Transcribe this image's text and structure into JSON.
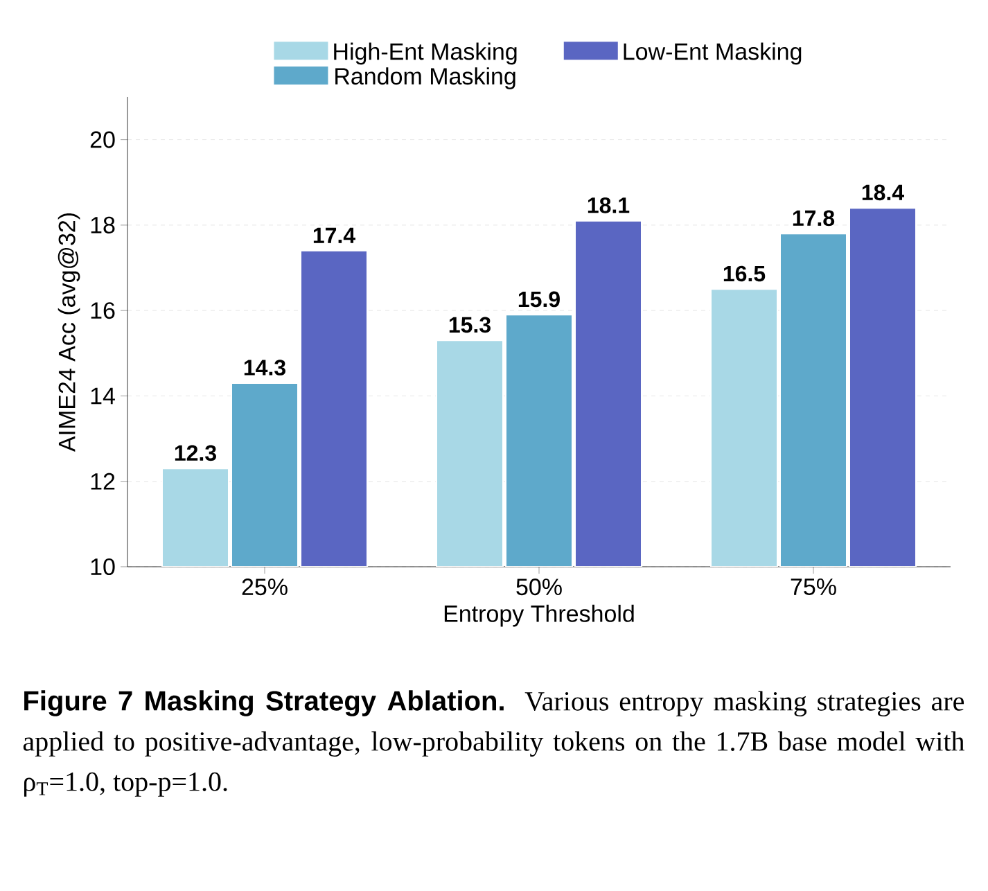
{
  "chart_data": {
    "type": "bar",
    "xlabel": "Entropy Threshold",
    "ylabel": "AIME24 Acc (avg@32)",
    "categories": [
      "25%",
      "50%",
      "75%"
    ],
    "series": [
      {
        "name": "High-Ent Masking",
        "color": "#a8d8e6",
        "values": [
          12.3,
          15.3,
          16.5
        ]
      },
      {
        "name": "Random Masking",
        "color": "#5ea9cb",
        "values": [
          14.3,
          15.9,
          17.8
        ]
      },
      {
        "name": "Low-Ent Masking",
        "color": "#5a66c2",
        "values": [
          17.4,
          18.1,
          18.4
        ]
      }
    ],
    "ylim": [
      10,
      21
    ],
    "yticks": [
      10,
      12,
      14,
      16,
      18,
      20
    ],
    "grid": "y",
    "legend": "top",
    "data_labels": true,
    "annotations": [
      "Figure 7  Masking Strategy Ablation.",
      "Various entropy masking strategies are applied to positive-advantage, low-probability tokens on the 1.7B base model with ρ$_{T}$=1.0, top-p=1.0."
    ]
  }
}
